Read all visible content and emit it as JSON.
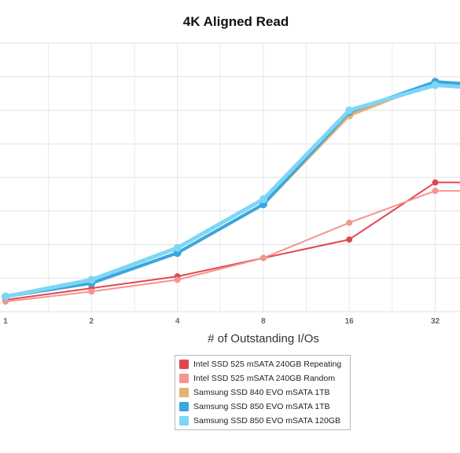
{
  "chart_data": {
    "type": "line",
    "title": "4K Aligned Read",
    "xlabel": "# of Outstanding I/Os",
    "ylabel": "",
    "categories": [
      "1",
      "2",
      "4",
      "8",
      "16",
      "32"
    ],
    "ylim": [
      0,
      8
    ],
    "grid": true,
    "legend_position": "bottom",
    "series": [
      {
        "name": "Intel SSD 525 mSATA 240GB Repeating",
        "color": "#e0484d",
        "values": [
          0.35,
          0.7,
          1.05,
          1.6,
          2.15,
          3.85
        ]
      },
      {
        "name": "Intel SSD 525 mSATA 240GB Random",
        "color": "#f4948f",
        "values": [
          0.3,
          0.6,
          0.95,
          1.6,
          2.65,
          3.6
        ]
      },
      {
        "name": "Samsung SSD 840 EVO mSATA 1TB",
        "color": "#e3b170",
        "values": [
          0.45,
          0.85,
          1.75,
          3.2,
          5.85,
          6.85
        ]
      },
      {
        "name": "Samsung SSD 850 EVO mSATA 1TB",
        "color": "#3aa6df",
        "values": [
          0.45,
          0.85,
          1.75,
          3.2,
          5.95,
          6.85
        ]
      },
      {
        "name": "Samsung SSD 850 EVO mSATA 120GB",
        "color": "#7ed6f7",
        "values": [
          0.45,
          0.95,
          1.9,
          3.35,
          6.0,
          6.75
        ]
      }
    ]
  }
}
